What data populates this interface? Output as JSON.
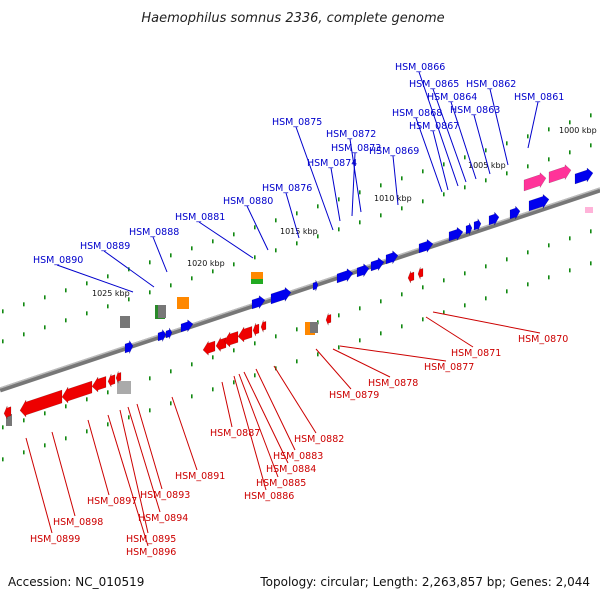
{
  "title": "Haemophilus somnus 2336, complete genome",
  "footer": {
    "accession": "Accession: NC_010519",
    "summary": "Topology: circular; Length: 2,263,857 bp; Genes: 2,044"
  },
  "colors": {
    "forward_gene": "#0000ee",
    "reverse_gene": "#ee0000",
    "rna_gene": "#ff3399",
    "trna_gene": "#ff8800",
    "pseudo_gene": "#777777",
    "tick": "#118811",
    "backbone": "#888888",
    "label_line_forward": "#0000cc",
    "label_line_reverse": "#cc0000"
  },
  "scale_marks": [
    "1000 kbp",
    "1005 kbp",
    "1010 kbp",
    "1015 kbp",
    "1020 kbp",
    "1025 kbp"
  ],
  "forward_labels": [
    "HSM_0861",
    "HSM_0862",
    "HSM_0863",
    "HSM_0864",
    "HSM_0865",
    "HSM_0866",
    "HSM_0867",
    "HSM_0868",
    "HSM_0869",
    "HSM_0872",
    "HSM_0873",
    "HSM_0874",
    "HSM_0875",
    "HSM_0876",
    "HSM_0880",
    "HSM_0881",
    "HSM_0888",
    "HSM_0889",
    "HSM_0890"
  ],
  "reverse_labels": [
    "HSM_0870",
    "HSM_0871",
    "HSM_0877",
    "HSM_0878",
    "HSM_0879",
    "HSM_0882",
    "HSM_0883",
    "HSM_0884",
    "HSM_0885",
    "HSM_0886",
    "HSM_0887",
    "HSM_0891",
    "HSM_0893",
    "HSM_0894",
    "HSM_0895",
    "HSM_0896",
    "HSM_0897",
    "HSM_0898",
    "HSM_0899"
  ]
}
